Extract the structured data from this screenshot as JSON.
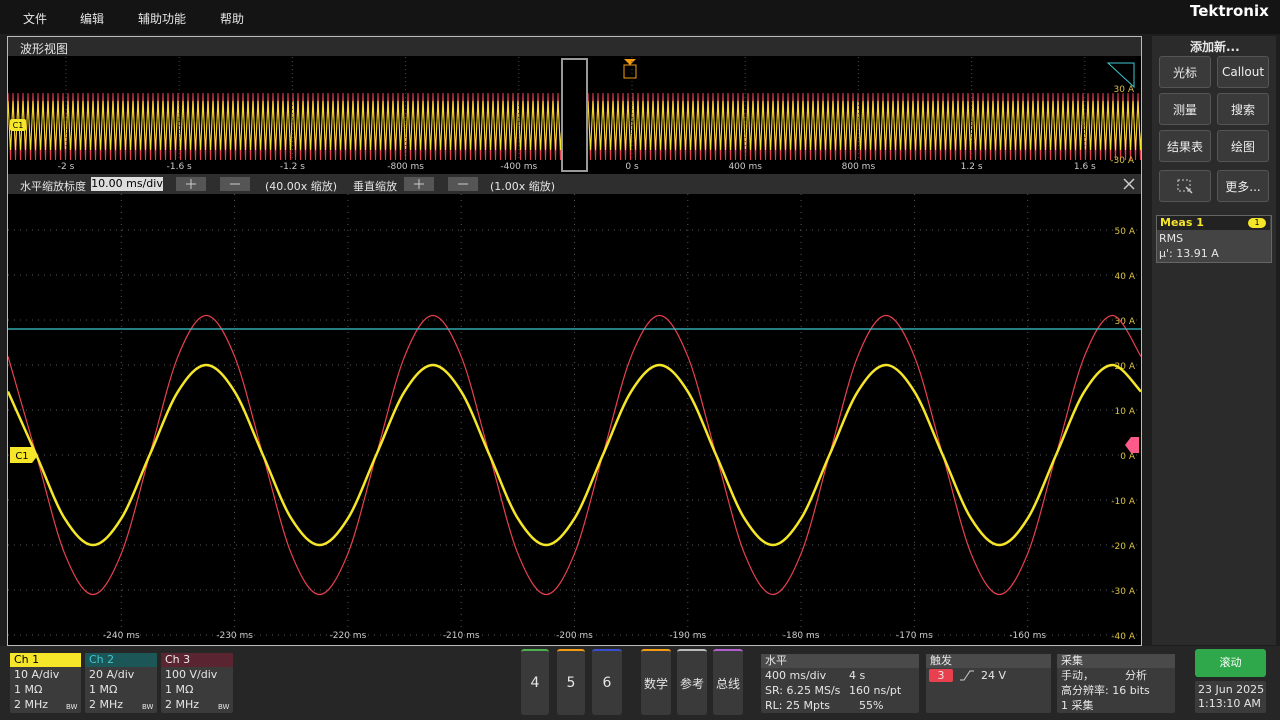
{
  "menu": {
    "items": [
      "文件",
      "编辑",
      "辅助功能",
      "帮助"
    ],
    "logo": "Tektronix"
  },
  "waveform_view": {
    "title": "波形视图",
    "overview": {
      "time_labels": [
        "-2 s",
        "-1.6 s",
        "-1.2 s",
        "-800 ms",
        "-400 ms",
        "0 s",
        "400 ms",
        "800 ms",
        "1.2 s",
        "1.6 s"
      ],
      "level_labels": [
        "30 A",
        "-30 A"
      ]
    },
    "zoom_bar": {
      "h_label": "水平缩放标度",
      "h_scale": "10.00 ms/div",
      "h_factor": "(40.00x 缩放)",
      "v_label": "垂直缩放",
      "v_factor": "(1.00x 缩放)"
    },
    "channel_marker": "C1"
  },
  "chart_data": {
    "type": "line",
    "x": [
      -250,
      -247.5,
      -245,
      -242.5,
      -240,
      -237.5,
      -235,
      -232.5,
      -230,
      -227.5,
      -225,
      -222.5,
      -220,
      -217.5,
      -215,
      -212.5,
      -210,
      -207.5,
      -205,
      -202.5,
      -200,
      -197.5,
      -195,
      -192.5,
      -190,
      -187.5,
      -185,
      -182.5,
      -180,
      -177.5,
      -175,
      -172.5,
      -170,
      -167.5,
      -165,
      -162.5,
      -160,
      -157.5,
      -155,
      -152.5,
      -150
    ],
    "series": [
      {
        "color": "#e8404f",
        "values": [
          21.9,
          0,
          -21.9,
          -31,
          -21.9,
          0,
          21.9,
          31,
          21.9,
          0,
          -21.9,
          -31,
          -21.9,
          0,
          21.9,
          31,
          21.9,
          0,
          -21.9,
          -31,
          -21.9,
          0,
          21.9,
          31,
          21.9,
          0,
          -21.9,
          -31,
          -21.9,
          0,
          21.9,
          31,
          21.9,
          0,
          -21.9,
          -31,
          -21.9,
          0,
          21.9,
          31,
          21.9
        ]
      },
      {
        "color": "#3cc8d0",
        "values": [
          28,
          28,
          28,
          28,
          28,
          28,
          28,
          28,
          28,
          28,
          28,
          28,
          28,
          28,
          28,
          28,
          28,
          28,
          28,
          28,
          28,
          28,
          28,
          28,
          28,
          28,
          28,
          28,
          28,
          28,
          28,
          28,
          28,
          28,
          28,
          28,
          28,
          28,
          28,
          28,
          28
        ]
      },
      {
        "color": "#f5e62a",
        "values": [
          14.1,
          0,
          -14.1,
          -20,
          -14.1,
          0,
          14.1,
          20,
          14.1,
          0,
          -14.1,
          -20,
          -14.1,
          0,
          14.1,
          20,
          14.1,
          0,
          -14.1,
          -20,
          -14.1,
          0,
          14.1,
          20,
          14.1,
          0,
          -14.1,
          -20,
          -14.1,
          0,
          14.1,
          20,
          14.1,
          0,
          -14.1,
          -20,
          -14.1,
          0,
          14.1,
          20,
          14.1
        ]
      }
    ],
    "xlim": [
      -250,
      -150
    ],
    "ylim": [
      -42,
      58
    ],
    "xticks": [
      {
        "value": -240,
        "label": "-240 ms"
      },
      {
        "value": -230,
        "label": "-230 ms"
      },
      {
        "value": -220,
        "label": "-220 ms"
      },
      {
        "value": -210,
        "label": "-210 ms"
      },
      {
        "value": -200,
        "label": "-200 ms"
      },
      {
        "value": -190,
        "label": "-190 ms"
      },
      {
        "value": -180,
        "label": "-180 ms"
      },
      {
        "value": -170,
        "label": "-170 ms"
      },
      {
        "value": -160,
        "label": "-160 ms"
      }
    ],
    "yticks": [
      {
        "value": -40,
        "label": "-40 A"
      },
      {
        "value": -30,
        "label": "-30 A"
      },
      {
        "value": -20,
        "label": "-20 A"
      },
      {
        "value": -10,
        "label": "-10 A"
      },
      {
        "value": 0,
        "label": "0 A"
      },
      {
        "value": 10,
        "label": "10 A"
      },
      {
        "value": 20,
        "label": "20 A"
      },
      {
        "value": 30,
        "label": "30 A"
      },
      {
        "value": 40,
        "label": "40 A"
      },
      {
        "value": 50,
        "label": "50 A"
      }
    ],
    "grid": true
  },
  "side_panel": {
    "title": "添加新...",
    "buttons": [
      "光标",
      "Callout",
      "测量",
      "搜索",
      "结果表",
      "绘图",
      "更多..."
    ],
    "meas": {
      "title": "Meas 1",
      "badge": "1",
      "name": "RMS",
      "value": "μ': 13.91 A"
    }
  },
  "status_bar": {
    "channels": [
      {
        "name": "Ch 1",
        "scale": "10 A/div",
        "impedance": "1 MΩ",
        "bandwidth": "2 MHz",
        "bw": "BW"
      },
      {
        "name": "Ch 2",
        "scale": "20 A/div",
        "impedance": "1 MΩ",
        "bandwidth": "2 MHz",
        "bw": "BW"
      },
      {
        "name": "Ch 3",
        "scale": "100 V/div",
        "impedance": "1 MΩ",
        "bandwidth": "2 MHz",
        "bw": "BW"
      }
    ],
    "buttons": [
      "4",
      "5",
      "6",
      "数学",
      "参考",
      "总线"
    ],
    "horizontal": {
      "title": "水平",
      "scale": "400 ms/div",
      "duration": "4 s",
      "sample_rate": "SR: 6.25 MS/s",
      "resolution": "160 ns/pt",
      "record_length": "RL: 25 Mpts",
      "position": "55%"
    },
    "trigger": {
      "title": "触发",
      "source": "3",
      "level": "24 V"
    },
    "acquisition": {
      "title": "采集",
      "mode": "手动，",
      "analysis": "分析",
      "resolution": "高分辨率: 16 bits",
      "count": "1 采集"
    },
    "run": "滚动",
    "date": "23 Jun 2025",
    "time": "1:13:10 AM"
  }
}
